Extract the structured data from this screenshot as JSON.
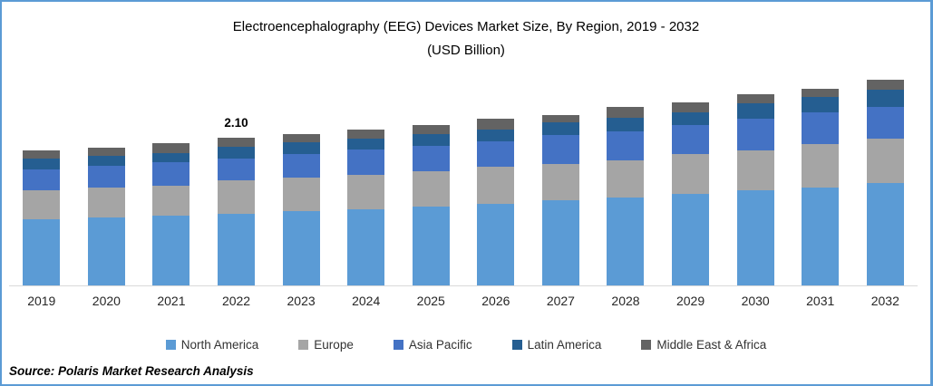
{
  "title": {
    "line1": "Electroencephalography (EEG) Devices Market Size, By Region, 2019 - 2032",
    "line2": "(USD Billion)"
  },
  "source": "Source: Polaris  Market Research Analysis",
  "frame_color": "#5B9BD5",
  "chart_data": {
    "type": "bar",
    "stacked": true,
    "title": "Electroencephalography (EEG) Devices Market Size, By Region, 2019 - 2032",
    "subtitle": "(USD Billion)",
    "xlabel": "",
    "ylabel": "USD Billion",
    "axis_visible": false,
    "grid": false,
    "legend_position": "bottom",
    "categories": [
      "2019",
      "2020",
      "2021",
      "2022",
      "2023",
      "2024",
      "2025",
      "2026",
      "2027",
      "2028",
      "2029",
      "2030",
      "2031",
      "2032"
    ],
    "series": [
      {
        "name": "North America",
        "color": "#5B9BD5",
        "values": [
          0.94,
          0.97,
          0.99,
          1.02,
          1.06,
          1.09,
          1.12,
          1.16,
          1.21,
          1.25,
          1.3,
          1.35,
          1.4,
          1.46
        ]
      },
      {
        "name": "Europe",
        "color": "#A5A5A5",
        "values": [
          0.42,
          0.43,
          0.43,
          0.48,
          0.48,
          0.49,
          0.5,
          0.53,
          0.52,
          0.53,
          0.57,
          0.57,
          0.61,
          0.63
        ]
      },
      {
        "name": "Asia Pacific",
        "color": "#4472C4",
        "values": [
          0.29,
          0.31,
          0.33,
          0.31,
          0.33,
          0.35,
          0.37,
          0.36,
          0.41,
          0.42,
          0.41,
          0.45,
          0.45,
          0.46
        ]
      },
      {
        "name": "Latin America",
        "color": "#255E91",
        "values": [
          0.16,
          0.14,
          0.14,
          0.17,
          0.17,
          0.16,
          0.17,
          0.17,
          0.18,
          0.19,
          0.19,
          0.23,
          0.22,
          0.24
        ]
      },
      {
        "name": "Middle East & Africa",
        "color": "#636363",
        "values": [
          0.11,
          0.11,
          0.13,
          0.12,
          0.11,
          0.13,
          0.12,
          0.15,
          0.11,
          0.15,
          0.14,
          0.12,
          0.12,
          0.14
        ]
      }
    ],
    "totals": [
      1.92,
      1.96,
      2.02,
      2.1,
      2.15,
      2.22,
      2.28,
      2.37,
      2.43,
      2.54,
      2.61,
      2.72,
      2.8,
      2.93
    ],
    "data_labels": [
      {
        "category": "2022",
        "text": "2.10"
      }
    ]
  }
}
